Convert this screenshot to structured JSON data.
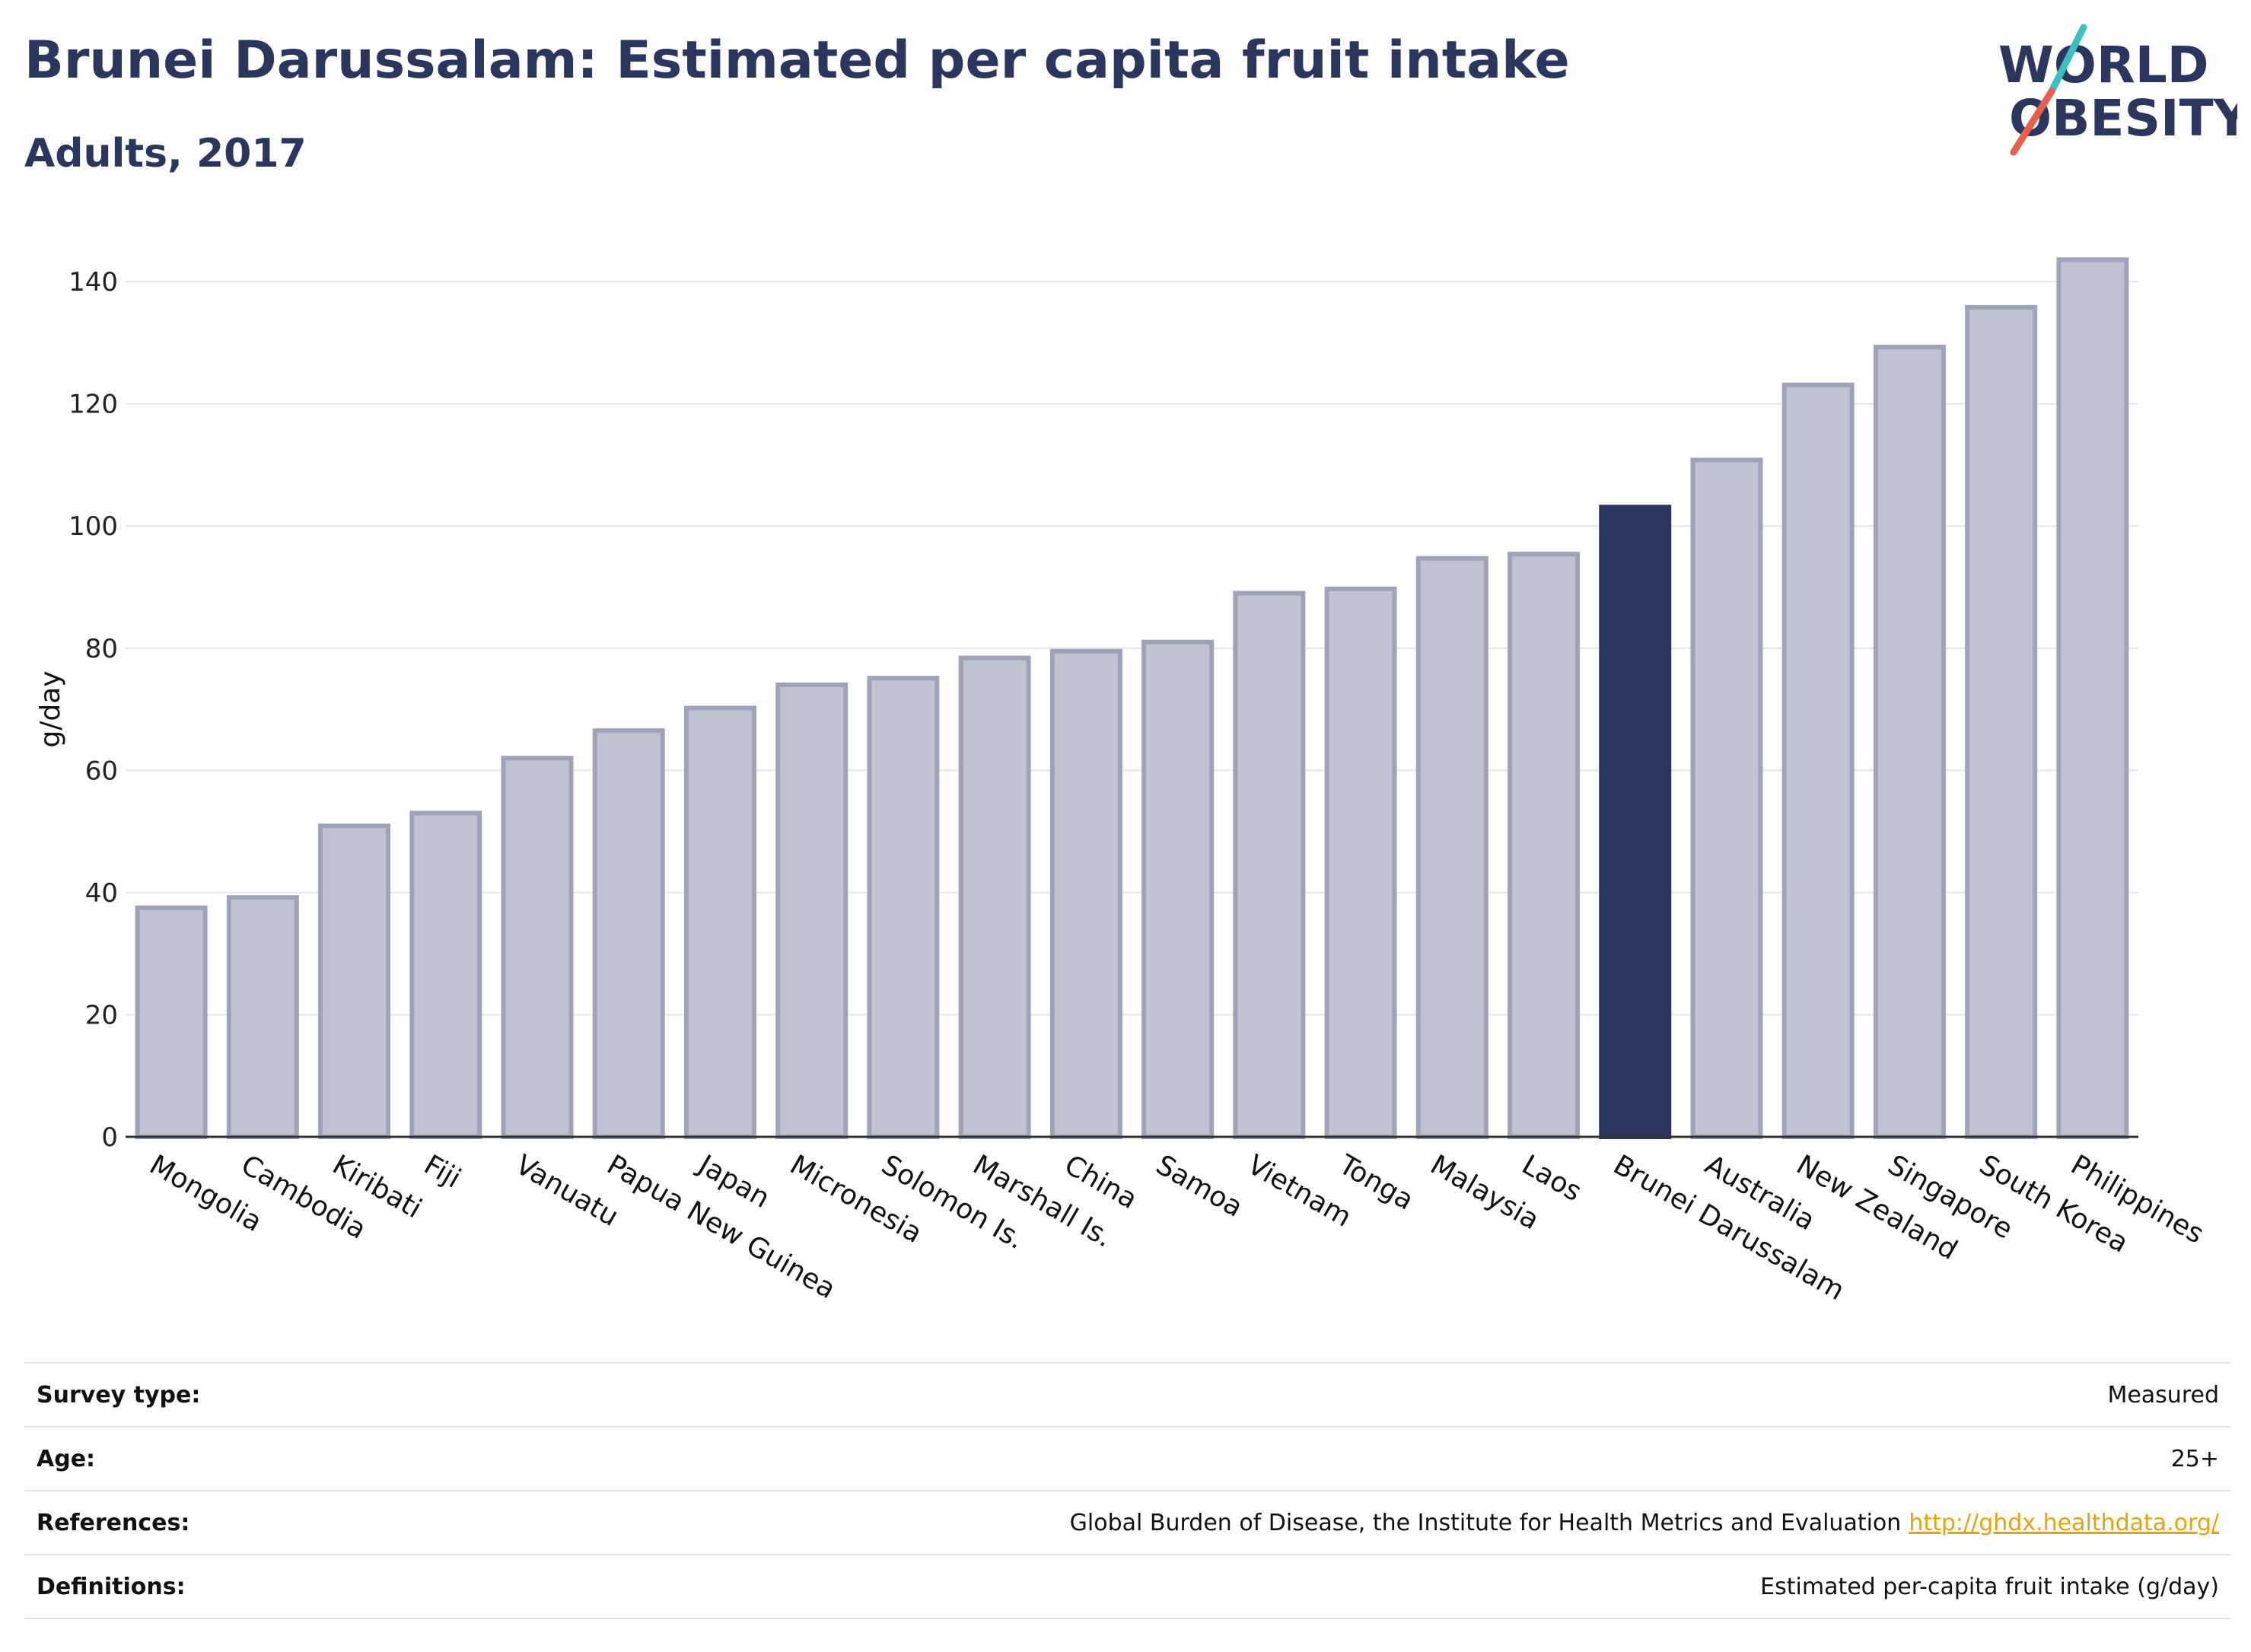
{
  "header": {
    "title": "Brunei Darussalam: Estimated per capita fruit intake",
    "subtitle": "Adults, 2017"
  },
  "logo": {
    "line1": "WORLD",
    "line2": "OBESITY",
    "accent_teal": "#3bbfc0",
    "accent_red": "#e8604c",
    "text_color": "#2b365e"
  },
  "chart_data": {
    "type": "bar",
    "title": "Brunei Darussalam: Estimated per capita fruit intake",
    "subtitle": "Adults, 2017",
    "xlabel": "",
    "ylabel": "g/day",
    "ylim": [
      0,
      145
    ],
    "yticks": [
      0,
      20,
      40,
      60,
      80,
      100,
      120,
      140
    ],
    "grid": true,
    "highlight": "Brunei Darussalam",
    "colors": {
      "bar": "#bfc2d0",
      "bar_edge": "#9ea3ba",
      "highlight": "#2b365e"
    },
    "categories": [
      "Mongolia",
      "Cambodia",
      "Kiribati",
      "Fiji",
      "Vanuatu",
      "Papua New Guinea",
      "Japan",
      "Micronesia",
      "Solomon Is.",
      "Marshall Is.",
      "China",
      "Samoa",
      "Vietnam",
      "Tonga",
      "Malaysia",
      "Laos",
      "Brunei Darussalam",
      "Australia",
      "New Zealand",
      "Singapore",
      "South Korea",
      "Philippines"
    ],
    "values": [
      37.5,
      39.2,
      50.9,
      53.0,
      62.0,
      66.5,
      70.2,
      74.0,
      75.1,
      78.4,
      79.5,
      81.0,
      89.0,
      89.7,
      94.7,
      95.4,
      103.1,
      110.8,
      123.1,
      129.3,
      135.8,
      143.6
    ]
  },
  "info": {
    "survey_type": {
      "label": "Survey type:",
      "value": "Measured"
    },
    "age": {
      "label": "Age:",
      "value": "25+"
    },
    "references": {
      "label": "References:",
      "value": "Global Burden of Disease, the Institute for Health Metrics and Evaluation",
      "link": "http://ghdx.healthdata.org/"
    },
    "definitions": {
      "label": "Definitions:",
      "value": "Estimated per-capita fruit intake (g/day)"
    }
  }
}
